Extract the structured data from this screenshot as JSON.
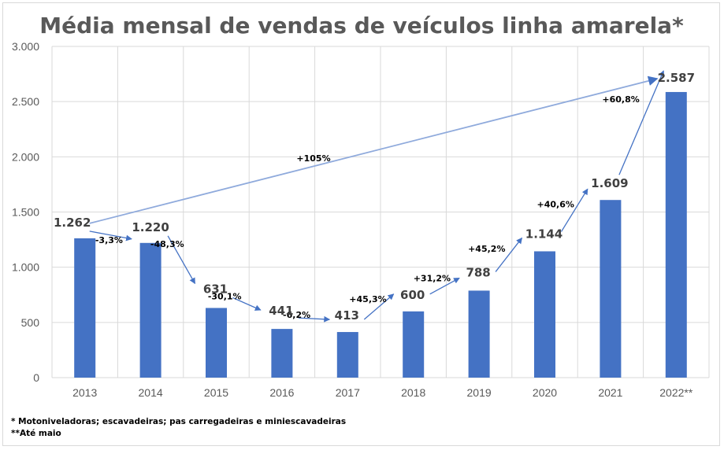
{
  "chart_data": {
    "type": "bar",
    "title": "Média mensal de vendas de veículos linha amarela*",
    "categories": [
      "2013",
      "2014",
      "2015",
      "2016",
      "2017",
      "2018",
      "2019",
      "2020",
      "2021",
      "2022**"
    ],
    "values": [
      1262,
      1220,
      631,
      441,
      413,
      600,
      788,
      1144,
      1609,
      2587
    ],
    "value_labels": [
      "1.262",
      "1.220",
      "631",
      "441",
      "413",
      "600",
      "788",
      "1.144",
      "1.609",
      "2.587"
    ],
    "ylim": [
      0,
      3000
    ],
    "yticks": [
      0,
      500,
      1000,
      1500,
      2000,
      2500,
      3000
    ],
    "ytick_labels": [
      "0",
      "500",
      "1.000",
      "1.500",
      "2.000",
      "2.500",
      "3.000"
    ],
    "grid": true,
    "bar_color": "#4472c4",
    "annotations": {
      "yoy_changes": [
        "-3,3%",
        "-48,3%",
        "-30,1%",
        "-6,2%",
        "+45,3%",
        "+31,2%",
        "+45,2%",
        "+40,6%",
        "+60,8%"
      ],
      "overall_change": "+105%"
    }
  },
  "footnotes": [
    "* Motoniveladoras; escavadeiras; pas carregadeiras e miniescavadeiras",
    "**Até maio"
  ]
}
